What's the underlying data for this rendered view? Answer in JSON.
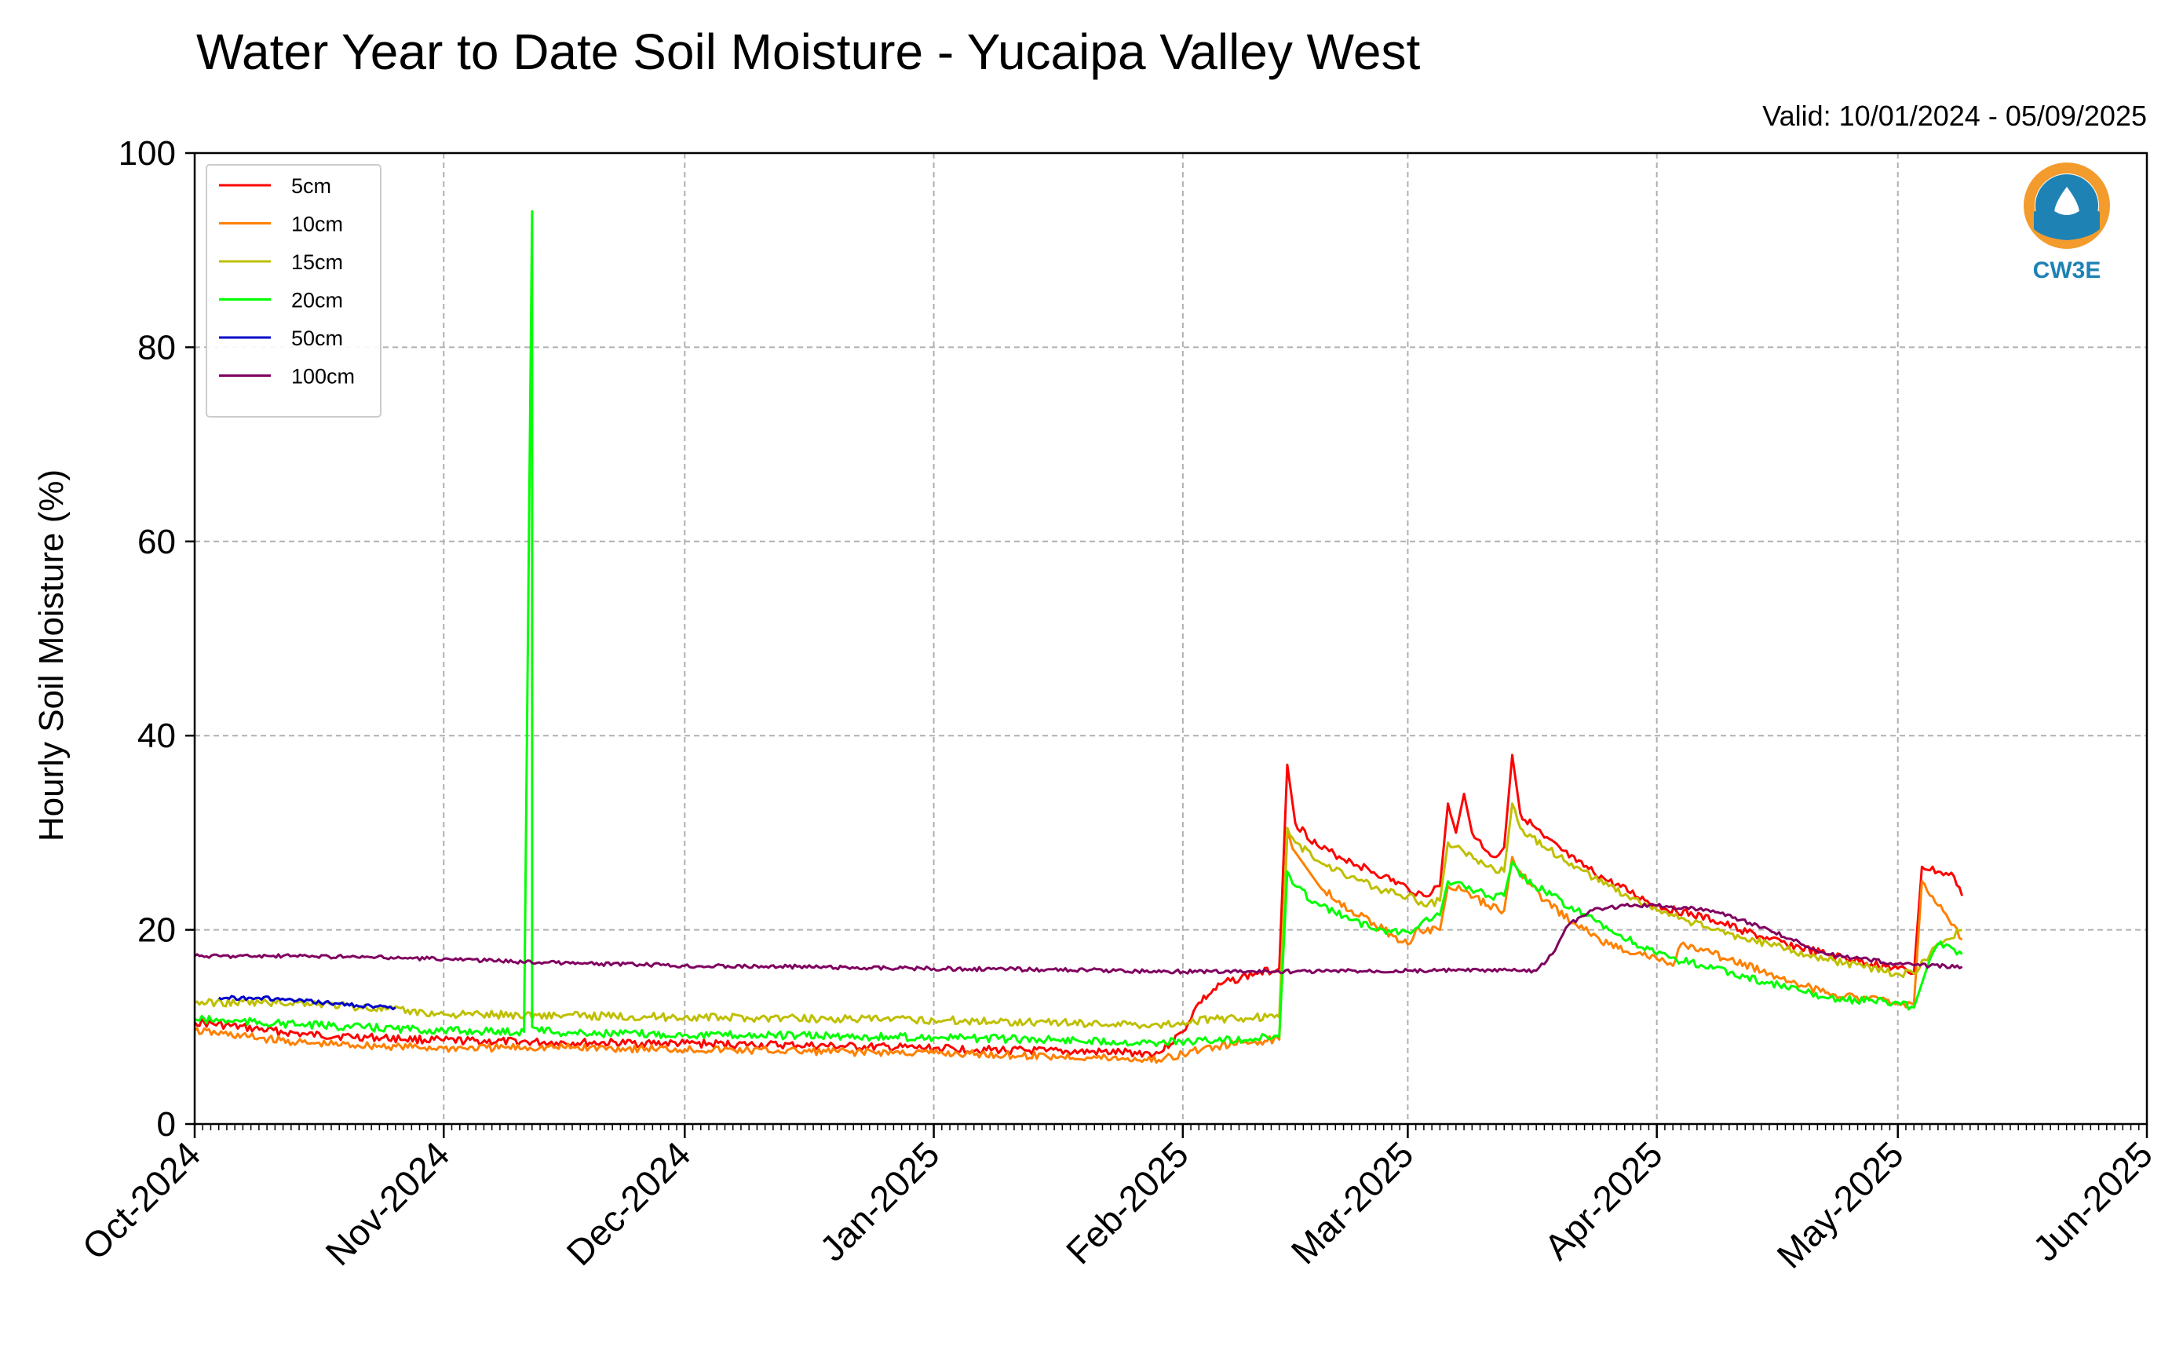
{
  "colors": {
    "5cm": "#ff0000",
    "10cm": "#ff8000",
    "15cm": "#bfbf00",
    "20cm": "#00ff00",
    "50cm": "#0000cc",
    "100cm": "#800060",
    "logo_orange": "#f39c2d",
    "logo_blue": "#1f82b5"
  },
  "logo": {
    "text": "CW3E",
    "icon": "cw3e-logo-icon"
  },
  "chart_data": {
    "type": "line",
    "title": "Water Year to Date Soil Moisture - Yucaipa Valley West",
    "subtitle": "Valid: 10/01/2024 - 05/09/2025",
    "xlabel": "",
    "ylabel": "Hourly Soil Moisture (%)",
    "xlim": [
      "2024-10-01",
      "2025-06-01"
    ],
    "ylim": [
      0,
      100
    ],
    "yticks": [
      0,
      20,
      40,
      60,
      80,
      100
    ],
    "xticks": [
      "2024-10-01",
      "2024-11-01",
      "2024-12-01",
      "2025-01-01",
      "2025-02-01",
      "2025-03-01",
      "2025-04-01",
      "2025-05-01",
      "2025-06-01"
    ],
    "xtick_labels": [
      "Oct-2024",
      "Nov-2024",
      "Dec-2024",
      "Jan-2025",
      "Feb-2025",
      "Mar-2025",
      "Apr-2025",
      "May-2025",
      "Jun-2025"
    ],
    "grid": true,
    "legend_position": "top-left",
    "series": [
      {
        "name": "5cm",
        "color_key": "5cm",
        "points": [
          [
            "2024-10-01",
            10.5
          ],
          [
            "2024-10-15",
            9.2
          ],
          [
            "2024-11-01",
            8.6
          ],
          [
            "2024-11-15",
            8.4
          ],
          [
            "2024-12-01",
            8.3
          ],
          [
            "2024-12-15",
            8.1
          ],
          [
            "2025-01-01",
            7.8
          ],
          [
            "2025-01-15",
            7.5
          ],
          [
            "2025-01-29",
            7.3
          ],
          [
            "2025-02-01",
            9.5
          ],
          [
            "2025-02-03",
            12.5
          ],
          [
            "2025-02-06",
            14.5
          ],
          [
            "2025-02-10",
            15.5
          ],
          [
            "2025-02-13",
            16.0
          ],
          [
            "2025-02-14",
            37.0
          ],
          [
            "2025-02-15",
            31.0
          ],
          [
            "2025-02-18",
            28.5
          ],
          [
            "2025-02-22",
            27.0
          ],
          [
            "2025-02-26",
            25.5
          ],
          [
            "2025-03-01",
            24.3
          ],
          [
            "2025-03-03",
            23.5
          ],
          [
            "2025-03-05",
            24.5
          ],
          [
            "2025-03-06",
            33.0
          ],
          [
            "2025-03-07",
            30.0
          ],
          [
            "2025-03-08",
            34.0
          ],
          [
            "2025-03-09",
            30.0
          ],
          [
            "2025-03-11",
            28.0
          ],
          [
            "2025-03-12",
            27.5
          ],
          [
            "2025-03-13",
            28.5
          ],
          [
            "2025-03-14",
            38.0
          ],
          [
            "2025-03-15",
            32.0
          ],
          [
            "2025-03-18",
            29.5
          ],
          [
            "2025-03-22",
            27.0
          ],
          [
            "2025-03-26",
            25.0
          ],
          [
            "2025-04-01",
            22.5
          ],
          [
            "2025-04-08",
            21.0
          ],
          [
            "2025-04-15",
            19.0
          ],
          [
            "2025-04-22",
            17.5
          ],
          [
            "2025-05-01",
            16.0
          ],
          [
            "2025-05-03",
            15.5
          ],
          [
            "2025-05-04",
            26.5
          ],
          [
            "2025-05-06",
            26.0
          ],
          [
            "2025-05-08",
            25.5
          ],
          [
            "2025-05-09",
            23.5
          ]
        ]
      },
      {
        "name": "10cm",
        "color_key": "10cm",
        "points": [
          [
            "2024-10-01",
            9.6
          ],
          [
            "2024-10-15",
            8.3
          ],
          [
            "2024-11-01",
            7.8
          ],
          [
            "2024-11-15",
            7.9
          ],
          [
            "2024-12-01",
            7.7
          ],
          [
            "2024-12-15",
            7.5
          ],
          [
            "2025-01-01",
            7.3
          ],
          [
            "2025-01-15",
            7.0
          ],
          [
            "2025-01-29",
            6.6
          ],
          [
            "2025-02-01",
            7.2
          ],
          [
            "2025-02-05",
            8.0
          ],
          [
            "2025-02-10",
            8.5
          ],
          [
            "2025-02-13",
            8.7
          ],
          [
            "2025-02-14",
            30.0
          ],
          [
            "2025-02-15",
            28.0
          ],
          [
            "2025-02-18",
            24.5
          ],
          [
            "2025-02-22",
            22.0
          ],
          [
            "2025-02-26",
            20.0
          ],
          [
            "2025-03-01",
            18.5
          ],
          [
            "2025-03-02",
            20.0
          ],
          [
            "2025-03-05",
            20.0
          ],
          [
            "2025-03-06",
            24.5
          ],
          [
            "2025-03-08",
            24.0
          ],
          [
            "2025-03-11",
            22.5
          ],
          [
            "2025-03-13",
            22.0
          ],
          [
            "2025-03-14",
            27.5
          ],
          [
            "2025-03-15",
            26.0
          ],
          [
            "2025-03-18",
            23.0
          ],
          [
            "2025-03-22",
            20.5
          ],
          [
            "2025-03-26",
            18.5
          ],
          [
            "2025-04-01",
            17.0
          ],
          [
            "2025-04-03",
            16.3
          ],
          [
            "2025-04-04",
            18.5
          ],
          [
            "2025-04-08",
            17.5
          ],
          [
            "2025-04-15",
            15.5
          ],
          [
            "2025-04-22",
            13.5
          ],
          [
            "2025-05-01",
            12.5
          ],
          [
            "2025-05-03",
            12.3
          ],
          [
            "2025-05-04",
            25.0
          ],
          [
            "2025-05-06",
            22.5
          ],
          [
            "2025-05-08",
            20.5
          ],
          [
            "2025-05-09",
            19.0
          ]
        ]
      },
      {
        "name": "15cm",
        "color_key": "15cm",
        "points": [
          [
            "2024-10-01",
            12.5
          ],
          [
            "2024-10-15",
            12.5
          ],
          [
            "2024-11-01",
            11.3
          ],
          [
            "2024-11-15",
            11.2
          ],
          [
            "2024-12-01",
            11.0
          ],
          [
            "2024-12-15",
            10.9
          ],
          [
            "2025-01-01",
            10.7
          ],
          [
            "2025-01-15",
            10.5
          ],
          [
            "2025-01-29",
            10.2
          ],
          [
            "2025-02-01",
            10.5
          ],
          [
            "2025-02-05",
            10.8
          ],
          [
            "2025-02-10",
            11.0
          ],
          [
            "2025-02-13",
            11.0
          ],
          [
            "2025-02-14",
            30.5
          ],
          [
            "2025-02-15",
            29.0
          ],
          [
            "2025-02-18",
            27.0
          ],
          [
            "2025-02-22",
            25.5
          ],
          [
            "2025-02-26",
            24.0
          ],
          [
            "2025-03-01",
            23.5
          ],
          [
            "2025-03-03",
            22.5
          ],
          [
            "2025-03-05",
            23.0
          ],
          [
            "2025-03-06",
            29.0
          ],
          [
            "2025-03-08",
            28.0
          ],
          [
            "2025-03-11",
            26.5
          ],
          [
            "2025-03-13",
            26.0
          ],
          [
            "2025-03-14",
            33.0
          ],
          [
            "2025-03-15",
            30.5
          ],
          [
            "2025-03-18",
            28.5
          ],
          [
            "2025-03-22",
            26.5
          ],
          [
            "2025-03-26",
            24.5
          ],
          [
            "2025-04-01",
            22.0
          ],
          [
            "2025-04-08",
            20.0
          ],
          [
            "2025-04-15",
            18.5
          ],
          [
            "2025-04-22",
            17.0
          ],
          [
            "2025-05-01",
            15.5
          ],
          [
            "2025-05-03",
            15.5
          ],
          [
            "2025-05-05",
            17.5
          ],
          [
            "2025-05-07",
            19.0
          ],
          [
            "2025-05-09",
            20.0
          ]
        ]
      },
      {
        "name": "20cm",
        "color_key": "20cm",
        "points": [
          [
            "2024-10-01",
            10.8
          ],
          [
            "2024-10-15",
            10.2
          ],
          [
            "2024-11-01",
            9.6
          ],
          [
            "2024-11-11",
            9.5
          ],
          [
            "2024-11-12",
            94.0
          ],
          [
            "2024-11-12",
            10.0
          ],
          [
            "2024-11-15",
            9.4
          ],
          [
            "2024-12-01",
            9.2
          ],
          [
            "2024-12-15",
            9.1
          ],
          [
            "2025-01-01",
            8.9
          ],
          [
            "2025-01-15",
            8.7
          ],
          [
            "2025-01-29",
            8.4
          ],
          [
            "2025-02-05",
            8.6
          ],
          [
            "2025-02-10",
            8.8
          ],
          [
            "2025-02-13",
            9.0
          ],
          [
            "2025-02-14",
            26.0
          ],
          [
            "2025-02-15",
            24.5
          ],
          [
            "2025-02-18",
            22.5
          ],
          [
            "2025-02-22",
            21.0
          ],
          [
            "2025-02-26",
            20.0
          ],
          [
            "2025-03-01",
            19.8
          ],
          [
            "2025-03-03",
            21.0
          ],
          [
            "2025-03-05",
            21.5
          ],
          [
            "2025-03-06",
            25.0
          ],
          [
            "2025-03-08",
            24.5
          ],
          [
            "2025-03-11",
            23.5
          ],
          [
            "2025-03-13",
            23.5
          ],
          [
            "2025-03-14",
            27.0
          ],
          [
            "2025-03-15",
            25.5
          ],
          [
            "2025-03-18",
            24.0
          ],
          [
            "2025-03-22",
            22.0
          ],
          [
            "2025-03-26",
            20.0
          ],
          [
            "2025-04-01",
            17.5
          ],
          [
            "2025-04-08",
            16.0
          ],
          [
            "2025-04-15",
            14.5
          ],
          [
            "2025-04-22",
            13.0
          ],
          [
            "2025-05-01",
            12.5
          ],
          [
            "2025-05-03",
            12.0
          ],
          [
            "2025-05-05",
            17.0
          ],
          [
            "2025-05-06",
            18.5
          ],
          [
            "2025-05-08",
            18.0
          ],
          [
            "2025-05-09",
            17.5
          ]
        ]
      },
      {
        "name": "50cm",
        "color_key": "50cm",
        "points": [
          [
            "2024-10-04",
            13.0
          ],
          [
            "2024-10-05",
            13.0
          ],
          [
            "2024-10-08",
            13.0
          ],
          [
            "2024-10-09",
            13.0
          ],
          [
            "2024-10-25",
            12.0
          ],
          [
            "2024-10-26",
            12.0
          ]
        ]
      },
      {
        "name": "100cm",
        "color_key": "100cm",
        "points": [
          [
            "2024-10-01",
            17.3
          ],
          [
            "2024-10-15",
            17.3
          ],
          [
            "2024-11-01",
            17.0
          ],
          [
            "2024-11-15",
            16.6
          ],
          [
            "2024-12-01",
            16.3
          ],
          [
            "2024-12-15",
            16.2
          ],
          [
            "2025-01-01",
            16.0
          ],
          [
            "2025-01-15",
            15.9
          ],
          [
            "2025-02-01",
            15.7
          ],
          [
            "2025-02-15",
            15.7
          ],
          [
            "2025-03-01",
            15.8
          ],
          [
            "2025-03-10",
            15.8
          ],
          [
            "2025-03-17",
            15.8
          ],
          [
            "2025-03-19",
            17.5
          ],
          [
            "2025-03-21",
            20.5
          ],
          [
            "2025-03-24",
            22.0
          ],
          [
            "2025-03-28",
            22.5
          ],
          [
            "2025-04-01",
            22.5
          ],
          [
            "2025-04-08",
            22.0
          ],
          [
            "2025-04-15",
            20.0
          ],
          [
            "2025-04-22",
            17.5
          ],
          [
            "2025-05-01",
            16.5
          ],
          [
            "2025-05-05",
            16.3
          ],
          [
            "2025-05-09",
            16.2
          ]
        ]
      }
    ]
  }
}
